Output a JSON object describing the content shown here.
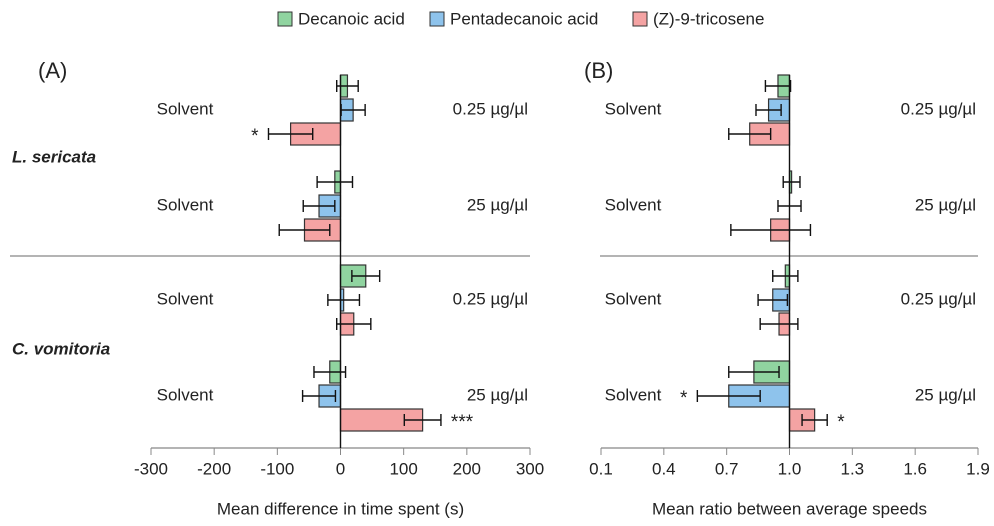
{
  "chart_data": [
    {
      "type": "bar",
      "panel": "(A)",
      "xlabel": "Mean difference in time spent (s)",
      "xlim": [
        -300,
        300
      ],
      "xticks": [
        -300,
        -200,
        -100,
        0,
        100,
        200,
        300
      ],
      "baseline": 0,
      "species": [
        "L. sericata",
        "C. vomitoria"
      ],
      "control_label": "Solvent",
      "categories": [
        "0.25 µg/µl",
        "25 µg/µl",
        "0.25 µg/µl",
        "25 µg/µl"
      ],
      "series": [
        {
          "name": "Decanoic acid",
          "color": "#90d4a0",
          "values": [
            11,
            -9,
            40,
            -17
          ],
          "errors": [
            17,
            28,
            22,
            25
          ]
        },
        {
          "name": "Pentadecanoic acid",
          "color": "#8ec3ec",
          "values": [
            20,
            -34,
            5,
            -34
          ],
          "errors": [
            19,
            25,
            25,
            26
          ]
        },
        {
          "name": "(Z)-9-tricosene",
          "color": "#f4a3a3",
          "values": [
            -79,
            -57,
            21,
            130
          ],
          "errors": [
            35,
            40,
            27,
            29
          ]
        }
      ],
      "annotations": [
        {
          "text": "*",
          "series": 2,
          "category": 0
        },
        {
          "text": "***",
          "series": 2,
          "category": 3
        }
      ]
    },
    {
      "type": "bar",
      "panel": "(B)",
      "xlabel": "Mean ratio between average speeds",
      "xlim": [
        0.1,
        1.9
      ],
      "xticks": [
        0.1,
        0.4,
        0.7,
        {
          "value": 1,
          "label": "1.0"
        },
        1.3,
        1.6,
        1.9
      ],
      "baseline": 1,
      "control_label": "Solvent",
      "categories": [
        "0.25 µg/µl",
        "25 µg/µl",
        "0.25 µg/µl",
        "25 µg/µl"
      ],
      "series": [
        {
          "color": "#90d4a0",
          "values": [
            0.945,
            1.01,
            0.98,
            0.83
          ],
          "errors": [
            0.06,
            0.04,
            0.06,
            0.12
          ]
        },
        {
          "color": "#8ec3ec",
          "values": [
            0.9,
            1.0,
            0.92,
            0.71
          ],
          "errors": [
            0.06,
            0.055,
            0.07,
            0.15
          ]
        },
        {
          "color": "#f4a3a3",
          "values": [
            0.81,
            0.91,
            0.95,
            1.12
          ],
          "errors": [
            0.1,
            0.19,
            0.09,
            0.06
          ]
        }
      ],
      "annotations": [
        {
          "text": "*",
          "series": 1,
          "category": 3
        },
        {
          "text": "*",
          "series": 2,
          "category": 3
        }
      ]
    }
  ]
}
